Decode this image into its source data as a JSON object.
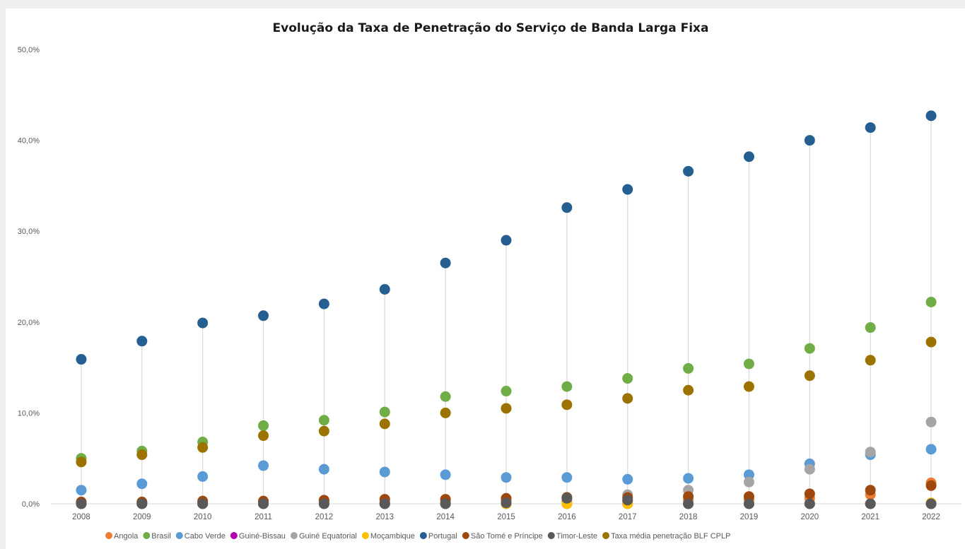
{
  "chart_data": {
    "type": "scatter",
    "title": "Evolução da Taxa de Penetração do Serviço de Banda Larga Fixa",
    "xlabel": "",
    "ylabel": "",
    "categories": [
      "2008",
      "2009",
      "2010",
      "2011",
      "2012",
      "2013",
      "2014",
      "2015",
      "2016",
      "2017",
      "2018",
      "2019",
      "2020",
      "2021",
      "2022"
    ],
    "ylim": [
      0,
      50
    ],
    "yticks": [
      "0,0%",
      "10,0%",
      "20,0%",
      "30,0%",
      "40,0%",
      "50,0%"
    ],
    "ytick_values": [
      0,
      10,
      20,
      30,
      40,
      50
    ],
    "grid": false,
    "drop_lines": true,
    "legend_position": "bottom",
    "series": [
      {
        "name": "Angola",
        "color": "#ed7d31",
        "values": [
          0.1,
          0.1,
          0.1,
          0.1,
          0.2,
          0.2,
          0.2,
          0.2,
          0.3,
          0.3,
          0.4,
          0.5,
          0.6,
          1.0,
          2.3
        ]
      },
      {
        "name": "Brasil",
        "color": "#70ad47",
        "values": [
          5.0,
          5.8,
          6.8,
          8.6,
          9.2,
          10.1,
          11.8,
          12.4,
          12.9,
          13.8,
          14.9,
          15.4,
          17.1,
          19.4,
          22.2
        ]
      },
      {
        "name": "Cabo Verde",
        "color": "#5b9bd5",
        "values": [
          1.5,
          2.2,
          3.0,
          4.2,
          3.8,
          3.5,
          3.2,
          2.9,
          2.9,
          2.7,
          2.8,
          3.2,
          4.4,
          5.4,
          6.0
        ]
      },
      {
        "name": "Guiné-Bissau",
        "color": "#b000b0",
        "values": [
          0.0,
          0.0,
          0.0,
          0.0,
          0.0,
          0.0,
          0.0,
          0.0,
          0.0,
          0.0,
          0.0,
          0.0,
          0.0,
          0.0,
          0.0
        ]
      },
      {
        "name": "Guiné Equatorial",
        "color": "#a5a5a5",
        "values": [
          0.1,
          0.1,
          0.1,
          0.2,
          0.2,
          0.3,
          0.3,
          0.5,
          0.7,
          1.0,
          1.5,
          2.4,
          3.8,
          5.7,
          9.0
        ]
      },
      {
        "name": "Moçambique",
        "color": "#ffc000",
        "values": [
          0.0,
          0.0,
          0.0,
          0.0,
          0.0,
          0.0,
          0.0,
          0.0,
          0.0,
          0.0,
          0.0,
          0.0,
          0.0,
          0.0,
          0.1
        ]
      },
      {
        "name": "Portugal",
        "color": "#255e91",
        "values": [
          15.9,
          17.9,
          19.9,
          20.7,
          22.0,
          23.6,
          26.5,
          29.0,
          32.6,
          34.6,
          36.6,
          38.2,
          40.0,
          41.4,
          42.7
        ]
      },
      {
        "name": "São Tomé e Príncipe",
        "color": "#9e480e",
        "values": [
          0.2,
          0.2,
          0.3,
          0.3,
          0.4,
          0.5,
          0.5,
          0.6,
          0.7,
          0.7,
          0.8,
          0.8,
          1.1,
          1.5,
          2.0
        ]
      },
      {
        "name": "Timor-Leste",
        "color": "#595959",
        "values": [
          0.0,
          0.0,
          0.0,
          0.0,
          0.0,
          0.0,
          0.0,
          0.1,
          0.6,
          0.4,
          0.0,
          0.0,
          0.0,
          0.0,
          0.0
        ]
      },
      {
        "name": "Taxa média penetração BLF CPLP",
        "color": "#9c7300",
        "values": [
          4.6,
          5.4,
          6.2,
          7.5,
          8.0,
          8.8,
          10.0,
          10.5,
          10.9,
          11.6,
          12.5,
          12.9,
          14.1,
          15.8,
          17.8
        ]
      }
    ]
  }
}
